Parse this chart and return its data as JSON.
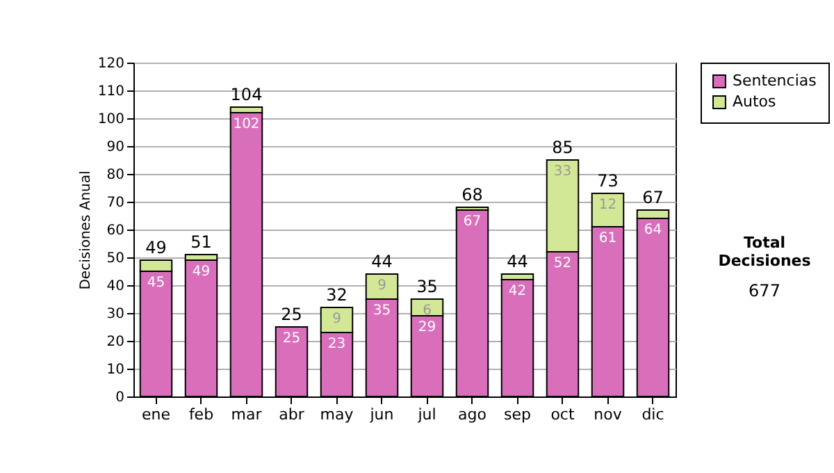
{
  "chart_data": {
    "type": "bar",
    "ylabel": "Decisiones Anual",
    "categories": [
      "ene",
      "feb",
      "mar",
      "abr",
      "may",
      "jun",
      "jul",
      "ago",
      "sep",
      "oct",
      "nov",
      "dic"
    ],
    "stacked": true,
    "series": [
      {
        "name": "Sentencias",
        "color": "#d96fbb",
        "values": [
          45,
          49,
          102,
          25,
          23,
          35,
          29,
          67,
          42,
          52,
          61,
          64
        ],
        "value_labels": [
          "45",
          "49",
          "102",
          "25",
          "23",
          "35",
          "29",
          "67",
          "42",
          "52",
          "61",
          "64"
        ]
      },
      {
        "name": "Autos",
        "color": "#d3e896",
        "values": [
          4,
          2,
          2,
          0,
          9,
          9,
          6,
          1,
          2,
          33,
          12,
          3
        ],
        "value_labels": [
          null,
          null,
          null,
          null,
          "9",
          "9",
          "6",
          null,
          null,
          "33",
          "12",
          null
        ]
      }
    ],
    "totals": [
      "49",
      "51",
      "104",
      "25",
      "32",
      "44",
      "35",
      "68",
      "44",
      "85",
      "73",
      "67"
    ],
    "ylim": [
      0,
      120
    ],
    "yticks": [
      0,
      10,
      20,
      30,
      40,
      50,
      60,
      70,
      80,
      90,
      100,
      110,
      120
    ],
    "grid": "y",
    "legend": "right",
    "annotations": [
      "Total Decisiones",
      "677"
    ]
  }
}
